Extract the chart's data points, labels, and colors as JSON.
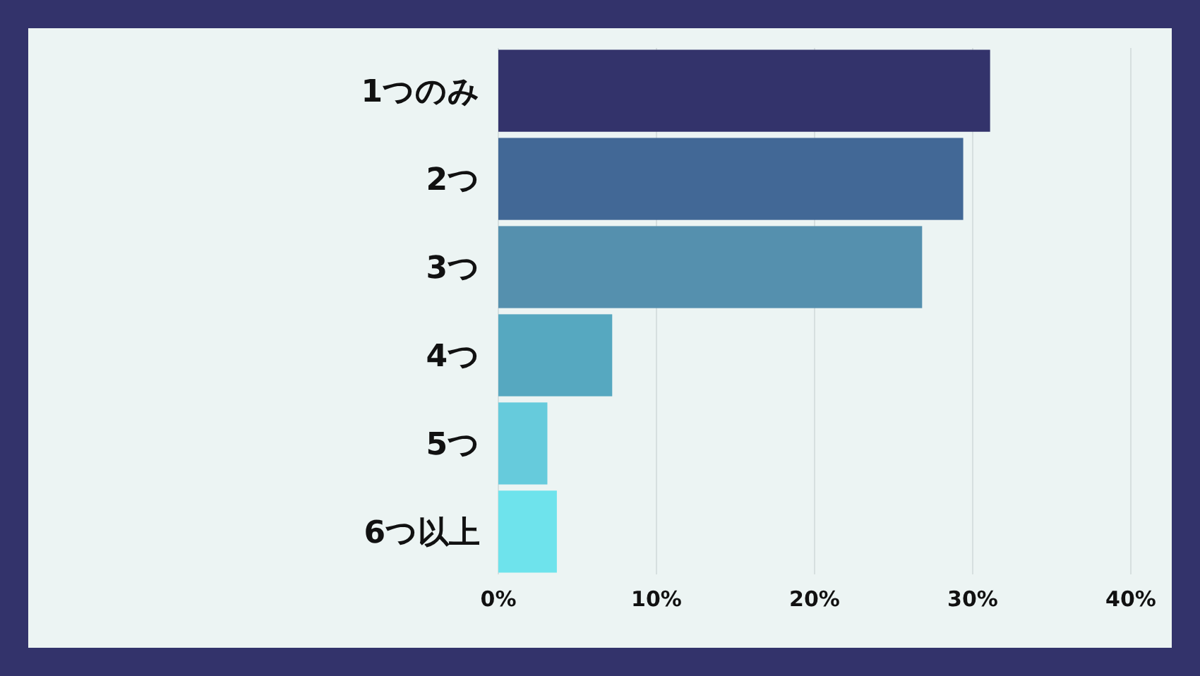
{
  "chart_data": {
    "type": "bar",
    "orientation": "horizontal",
    "categories": [
      "1つのみ",
      "2つ",
      "3つ",
      "4つ",
      "5つ",
      "6つ以上"
    ],
    "values": [
      31.1,
      29.4,
      26.8,
      7.2,
      3.1,
      3.7
    ],
    "colors": [
      "#33336b",
      "#426896",
      "#5590ae",
      "#56a8c0",
      "#66cbdc",
      "#6ee3ec"
    ],
    "xlim": [
      0,
      40
    ],
    "xticks": [
      {
        "value": 0,
        "label": "0%"
      },
      {
        "value": 10,
        "label": "10%"
      },
      {
        "value": 20,
        "label": "20%"
      },
      {
        "value": 30,
        "label": "30%"
      },
      {
        "value": 40,
        "label": "40%"
      }
    ],
    "grid": "x"
  }
}
